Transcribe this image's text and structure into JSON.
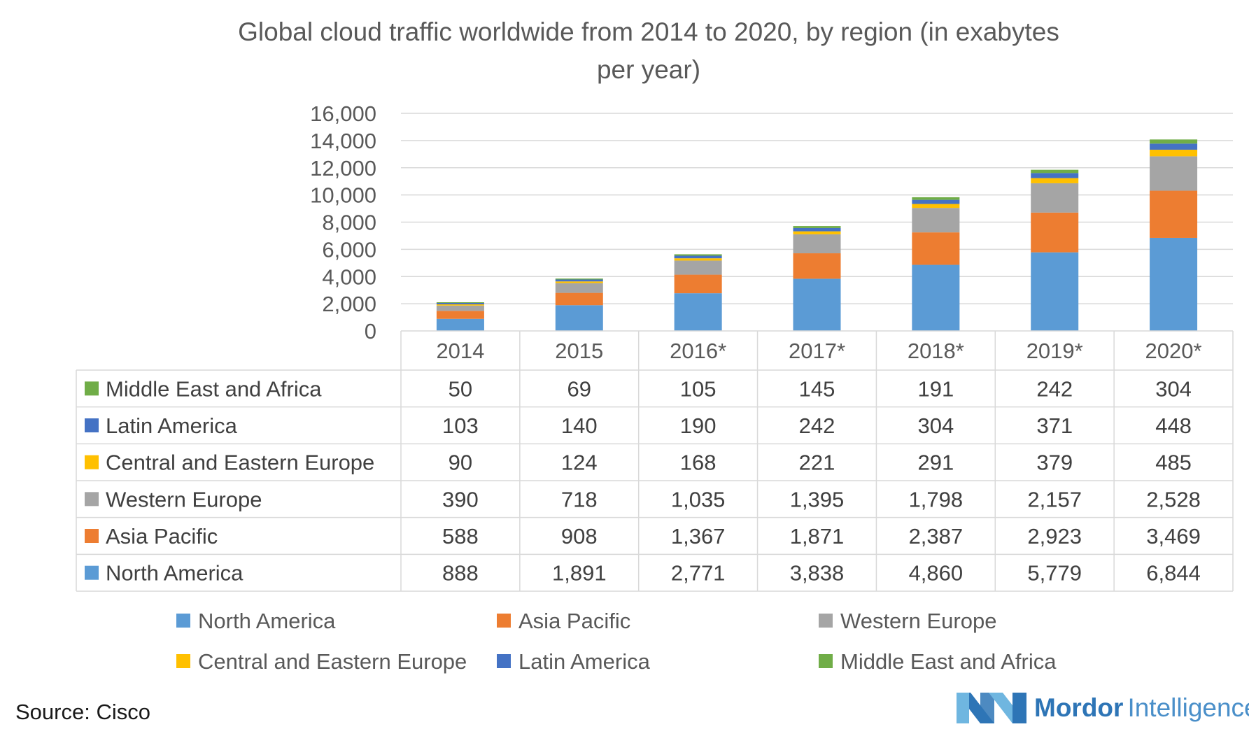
{
  "chart_data": {
    "type": "bar",
    "stacked": true,
    "title": "Global cloud traffic worldwide from 2014 to 2020, by region (in exabytes per year)",
    "title_lines": [
      "Global cloud traffic worldwide from 2014 to 2020, by region (in exabytes",
      "per year)"
    ],
    "categories": [
      "2014",
      "2015",
      "2016*",
      "2017*",
      "2018*",
      "2019*",
      "2020*"
    ],
    "ylim": [
      0,
      16000
    ],
    "yticks": [
      0,
      2000,
      4000,
      6000,
      8000,
      10000,
      12000,
      14000,
      16000
    ],
    "ytick_labels": [
      "0",
      "2,000",
      "4,000",
      "6,000",
      "8,000",
      "10,000",
      "12,000",
      "14,000",
      "16,000"
    ],
    "grid": true,
    "series": [
      {
        "name": "North America",
        "color": "#5b9bd5",
        "values": [
          888,
          1891,
          2771,
          3838,
          4860,
          5779,
          6844
        ],
        "labels": [
          "888",
          "1,891",
          "2,771",
          "3,838",
          "4,860",
          "5,779",
          "6,844"
        ]
      },
      {
        "name": "Asia Pacific",
        "color": "#ed7d31",
        "values": [
          588,
          908,
          1367,
          1871,
          2387,
          2923,
          3469
        ],
        "labels": [
          "588",
          "908",
          "1,367",
          "1,871",
          "2,387",
          "2,923",
          "3,469"
        ]
      },
      {
        "name": "Western Europe",
        "color": "#a5a5a5",
        "values": [
          390,
          718,
          1035,
          1395,
          1798,
          2157,
          2528
        ],
        "labels": [
          "390",
          "718",
          "1,035",
          "1,395",
          "1,798",
          "2,157",
          "2,528"
        ]
      },
      {
        "name": "Central and Eastern Europe",
        "color": "#ffc000",
        "values": [
          90,
          124,
          168,
          221,
          291,
          379,
          485
        ],
        "labels": [
          "90",
          "124",
          "168",
          "221",
          "291",
          "379",
          "485"
        ]
      },
      {
        "name": "Latin America",
        "color": "#4472c4",
        "values": [
          103,
          140,
          190,
          242,
          304,
          371,
          448
        ],
        "labels": [
          "103",
          "140",
          "190",
          "242",
          "304",
          "371",
          "448"
        ]
      },
      {
        "name": "Middle East and Africa",
        "color": "#70ad47",
        "values": [
          50,
          69,
          105,
          145,
          191,
          242,
          304
        ],
        "labels": [
          "50",
          "69",
          "105",
          "145",
          "191",
          "242",
          "304"
        ]
      }
    ],
    "legend": [
      "North America",
      "Asia Pacific",
      "Western Europe",
      "Central and Eastern Europe",
      "Latin America",
      "Middle East and Africa"
    ],
    "legend_position": "bottom",
    "source": "Source: Cisco"
  },
  "branding": {
    "logo_word_bold": "Mordor",
    "logo_word_light": "Intelligence"
  },
  "colors": {
    "grid": "#d9d9d9",
    "table_border": "#d9d9d9",
    "brand": "#2e75b6",
    "brand_light": "#6fb6e0"
  }
}
